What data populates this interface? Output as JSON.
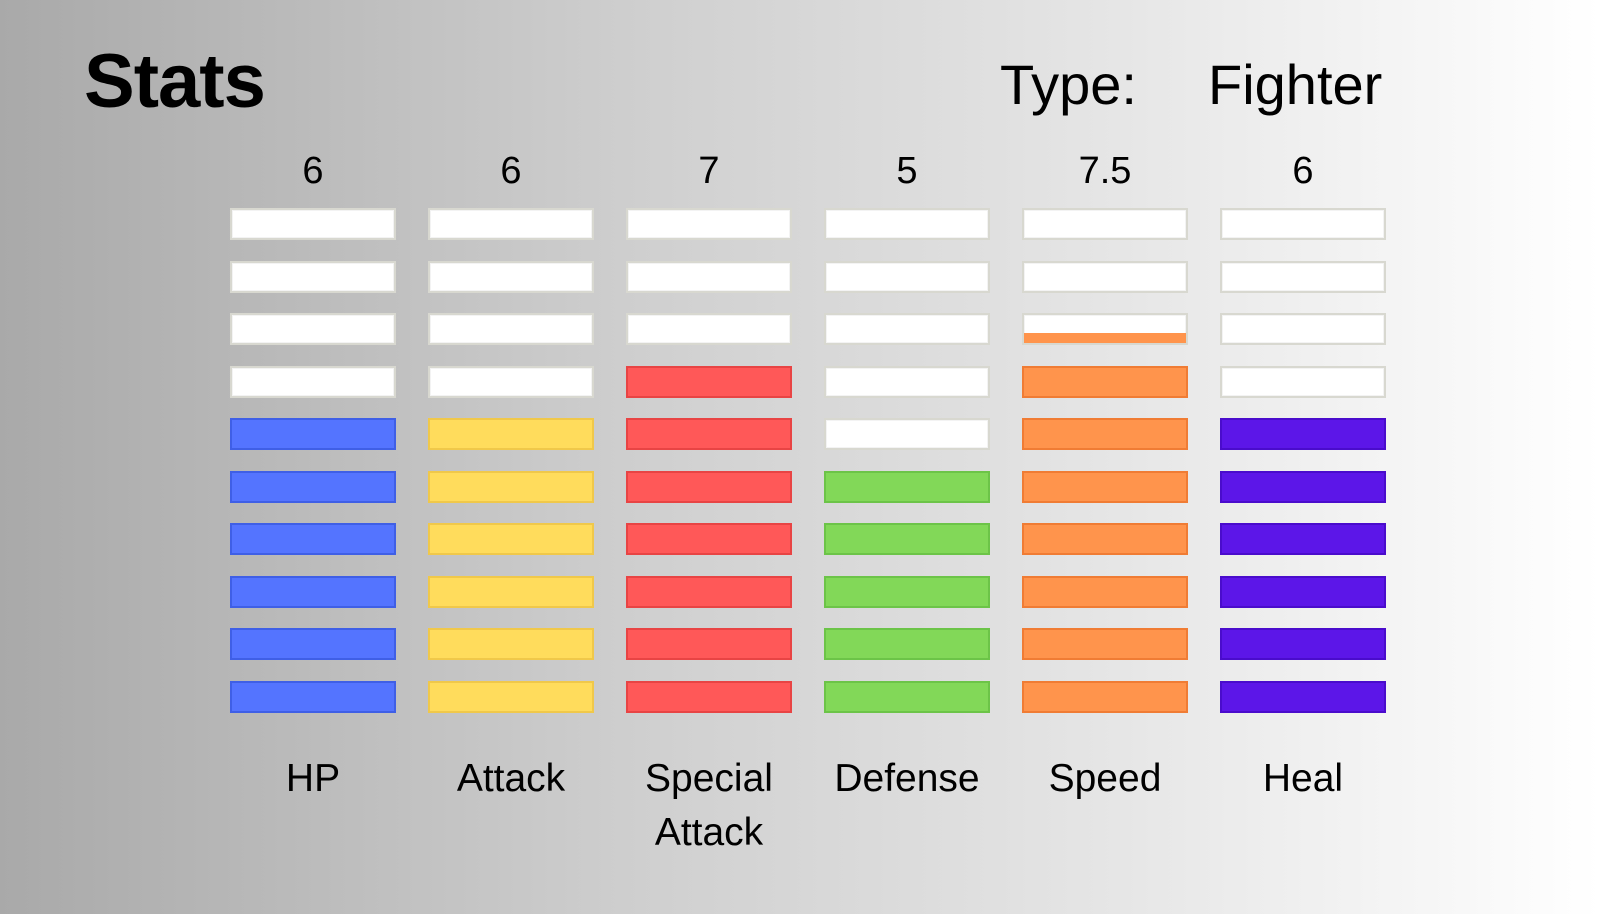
{
  "header": {
    "title": "Stats",
    "type_label": "Type:",
    "type_value": "Fighter"
  },
  "chart_data": {
    "type": "bar",
    "title": "Stats",
    "max_segments": 10,
    "categories": [
      "HP",
      "Attack",
      "Special Attack",
      "Defense",
      "Speed",
      "Heal"
    ],
    "value_labels": [
      "6",
      "6",
      "7",
      "5",
      "7.5",
      "6"
    ],
    "values": [
      6,
      6,
      7,
      5,
      7.5,
      6
    ],
    "colors": [
      "#5474ff",
      "#ffdc5c",
      "#ff5858",
      "#82d858",
      "#ff944c",
      "#5c16e8"
    ],
    "border_colors": [
      "#3f5fe6",
      "#f0c84a",
      "#e84444",
      "#6cc448",
      "#f07c34",
      "#4a0ccc"
    ]
  }
}
